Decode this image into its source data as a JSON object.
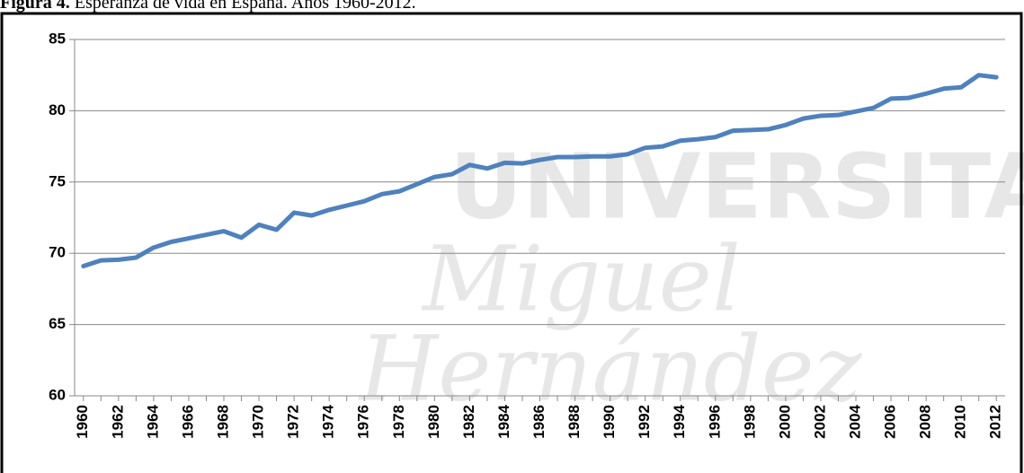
{
  "chart_data": {
    "type": "line",
    "title_prefix": "Figura 4.",
    "title": "Esperanza de vida en España. Años 1960-2012.",
    "watermark": [
      "UNIVERSITAS",
      "Miguel",
      "Hernández"
    ],
    "x": [
      1960,
      1961,
      1962,
      1963,
      1964,
      1965,
      1966,
      1967,
      1968,
      1969,
      1970,
      1971,
      1972,
      1973,
      1974,
      1975,
      1976,
      1977,
      1978,
      1979,
      1980,
      1981,
      1982,
      1983,
      1984,
      1985,
      1986,
      1987,
      1988,
      1989,
      1990,
      1991,
      1992,
      1993,
      1994,
      1995,
      1996,
      1997,
      1998,
      1999,
      2000,
      2001,
      2002,
      2003,
      2004,
      2005,
      2006,
      2007,
      2008,
      2009,
      2010,
      2011,
      2012
    ],
    "series": [
      {
        "color": "#4f81bd",
        "values": [
          69.1,
          69.5,
          69.55,
          69.7,
          70.4,
          70.8,
          71.05,
          71.3,
          71.55,
          71.1,
          72.0,
          71.65,
          72.85,
          72.65,
          73.05,
          73.35,
          73.65,
          74.15,
          74.35,
          74.85,
          75.35,
          75.55,
          76.2,
          75.95,
          76.35,
          76.3,
          76.55,
          76.75,
          76.75,
          76.8,
          76.8,
          76.95,
          77.4,
          77.5,
          77.9,
          78.0,
          78.15,
          78.6,
          78.65,
          78.7,
          79.0,
          79.45,
          79.65,
          79.7,
          79.95,
          80.2,
          80.85,
          80.9,
          81.2,
          81.55,
          81.65,
          82.5,
          82.35
        ]
      }
    ],
    "xlim": [
      1959.5,
      2012.5
    ],
    "xticks": [
      1960,
      1962,
      1964,
      1966,
      1968,
      1970,
      1972,
      1974,
      1976,
      1978,
      1980,
      1982,
      1984,
      1986,
      1988,
      1990,
      1992,
      1994,
      1996,
      1998,
      2000,
      2002,
      2004,
      2006,
      2008,
      2010,
      2012
    ],
    "ylim": [
      60,
      85
    ],
    "yticks": [
      60,
      65,
      70,
      75,
      80,
      85
    ],
    "grid": true
  }
}
